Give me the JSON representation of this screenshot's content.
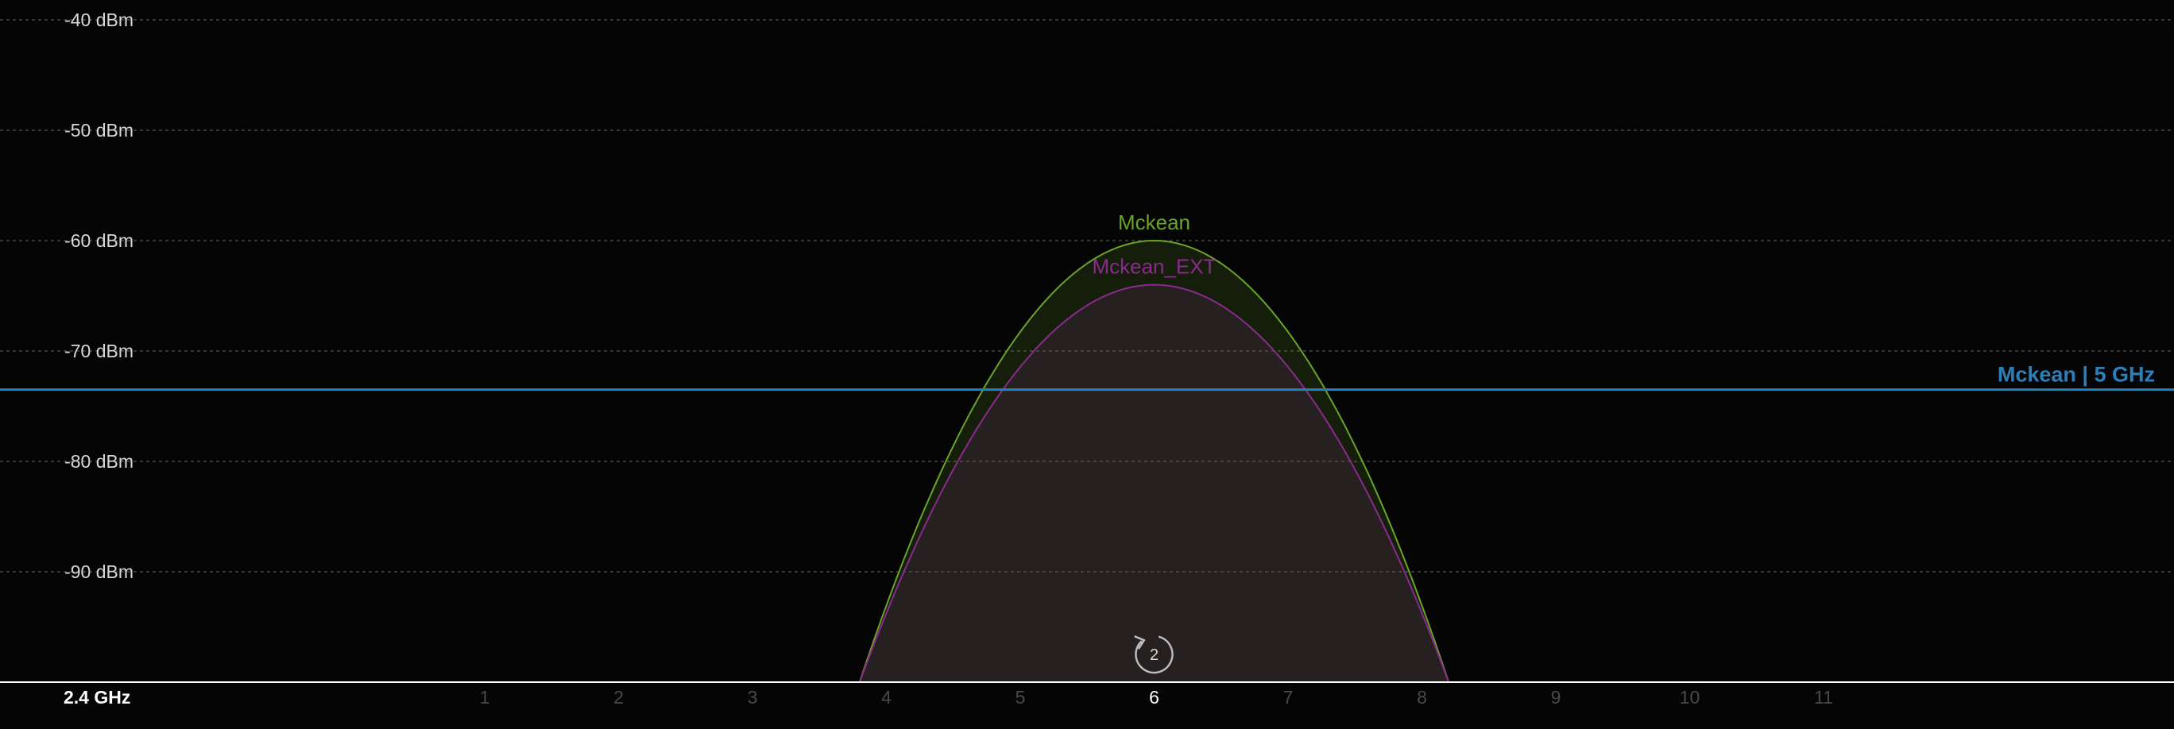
{
  "chart_data": {
    "type": "area",
    "band_label": "2.4 GHz",
    "y_unit": "dBm",
    "ylim": [
      -100,
      -39
    ],
    "y_ticks": [
      {
        "value": -40,
        "label": "-40 dBm"
      },
      {
        "value": -50,
        "label": "-50 dBm"
      },
      {
        "value": -60,
        "label": "-60 dBm"
      },
      {
        "value": -70,
        "label": "-70 dBm"
      },
      {
        "value": -80,
        "label": "-80 dBm"
      },
      {
        "value": -90,
        "label": "-90 dBm"
      }
    ],
    "xlim": [
      -2.2,
      14
    ],
    "channels": [
      "1",
      "2",
      "3",
      "4",
      "5",
      "6",
      "7",
      "8",
      "9",
      "10",
      "11"
    ],
    "highlighted_channel": "6",
    "grid": true,
    "networks": [
      {
        "name": "Mckean",
        "channel": 6,
        "signal_dbm": -60,
        "span": [
          3.8,
          8.2
        ],
        "color": "#6aa32a"
      },
      {
        "name": "Mckean_EXT",
        "channel": 6,
        "signal_dbm": -64,
        "span": [
          3.8,
          8.2
        ],
        "color": "#8a2a8e"
      }
    ],
    "reference_lines": [
      {
        "name": "Mckean | 5 GHz",
        "signal_dbm": -73.5,
        "color": "#2d7fb8"
      }
    ],
    "badge": {
      "count": "2",
      "channel": 6
    }
  }
}
